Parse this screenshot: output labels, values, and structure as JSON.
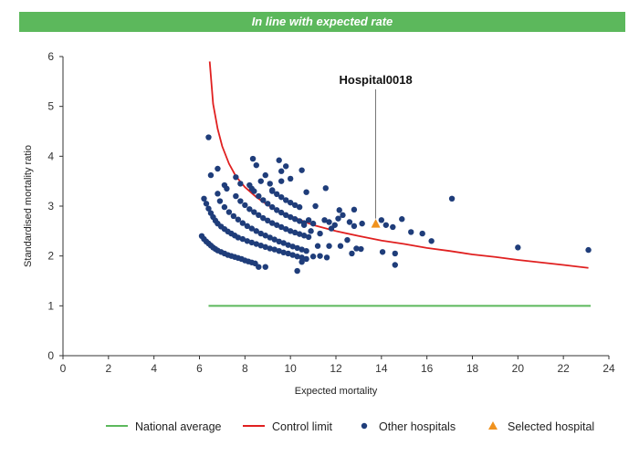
{
  "banner": {
    "text": "In line with expected rate",
    "color": "#5cb85c"
  },
  "chart_data": {
    "type": "scatter",
    "title": "",
    "xlabel": "Expected mortality",
    "ylabel": "Standardised mortality ratio",
    "xlim": [
      0,
      24
    ],
    "ylim": [
      0,
      6
    ],
    "x_ticks": [
      "0",
      "2",
      "4",
      "6",
      "8",
      "10",
      "12",
      "14",
      "16",
      "18",
      "20",
      "22",
      "24"
    ],
    "y_ticks": [
      "0",
      "1",
      "2",
      "3",
      "4",
      "5",
      "6"
    ],
    "grid": false,
    "legend_position": "bottom",
    "colors": {
      "national_average": "#5cb85c",
      "control_limit": "#e02020",
      "other_hospitals": "#1f3d7a",
      "selected_hospital": "#f0921e"
    },
    "national_average": {
      "name": "National average",
      "value": 1.0,
      "x_range": [
        6.4,
        23.2
      ]
    },
    "control_limit": {
      "name": "Control limit",
      "points": [
        [
          6.45,
          5.9
        ],
        [
          6.6,
          5.05
        ],
        [
          6.8,
          4.55
        ],
        [
          7.0,
          4.2
        ],
        [
          7.3,
          3.85
        ],
        [
          7.6,
          3.6
        ],
        [
          8.0,
          3.38
        ],
        [
          8.5,
          3.18
        ],
        [
          9.0,
          3.02
        ],
        [
          9.5,
          2.9
        ],
        [
          10.0,
          2.8
        ],
        [
          11.0,
          2.62
        ],
        [
          12.0,
          2.5
        ],
        [
          13.0,
          2.4
        ],
        [
          14.0,
          2.31
        ],
        [
          15.0,
          2.24
        ],
        [
          16.0,
          2.16
        ],
        [
          17.0,
          2.1
        ],
        [
          18.0,
          2.03
        ],
        [
          19.0,
          1.98
        ],
        [
          20.0,
          1.92
        ],
        [
          21.0,
          1.87
        ],
        [
          22.0,
          1.82
        ],
        [
          23.1,
          1.76
        ]
      ]
    },
    "selected_hospital": {
      "name": "Selected hospital",
      "label": "Hospital0018",
      "x": 13.75,
      "y": 2.64
    },
    "other_hospitals": {
      "name": "Other hospitals",
      "points": [
        [
          6.1,
          2.4
        ],
        [
          6.2,
          2.34
        ],
        [
          6.3,
          2.29
        ],
        [
          6.4,
          2.25
        ],
        [
          6.5,
          2.21
        ],
        [
          6.6,
          2.17
        ],
        [
          6.7,
          2.14
        ],
        [
          6.8,
          2.11
        ],
        [
          6.95,
          2.08
        ],
        [
          7.1,
          2.05
        ],
        [
          7.25,
          2.02
        ],
        [
          7.4,
          2.0
        ],
        [
          7.55,
          1.98
        ],
        [
          7.7,
          1.96
        ],
        [
          7.85,
          1.94
        ],
        [
          8.0,
          1.91
        ],
        [
          8.15,
          1.89
        ],
        [
          8.3,
          1.87
        ],
        [
          8.45,
          1.85
        ],
        [
          8.6,
          1.78
        ],
        [
          8.9,
          1.78
        ],
        [
          6.2,
          3.15
        ],
        [
          6.3,
          3.05
        ],
        [
          6.4,
          2.95
        ],
        [
          6.5,
          2.86
        ],
        [
          6.6,
          2.78
        ],
        [
          6.7,
          2.71
        ],
        [
          6.8,
          2.65
        ],
        [
          6.95,
          2.59
        ],
        [
          7.1,
          2.54
        ],
        [
          7.25,
          2.49
        ],
        [
          7.4,
          2.45
        ],
        [
          7.55,
          2.41
        ],
        [
          7.7,
          2.37
        ],
        [
          7.9,
          2.34
        ],
        [
          8.1,
          2.3
        ],
        [
          8.3,
          2.27
        ],
        [
          8.5,
          2.24
        ],
        [
          8.7,
          2.21
        ],
        [
          8.9,
          2.18
        ],
        [
          9.1,
          2.15
        ],
        [
          9.3,
          2.13
        ],
        [
          9.5,
          2.1
        ],
        [
          9.7,
          2.07
        ],
        [
          9.9,
          2.05
        ],
        [
          10.1,
          2.02
        ],
        [
          10.3,
          1.99
        ],
        [
          10.5,
          1.97
        ],
        [
          10.7,
          1.94
        ],
        [
          6.9,
          3.1
        ],
        [
          7.1,
          2.98
        ],
        [
          7.3,
          2.88
        ],
        [
          7.5,
          2.8
        ],
        [
          7.7,
          2.73
        ],
        [
          7.9,
          2.66
        ],
        [
          8.1,
          2.6
        ],
        [
          8.3,
          2.55
        ],
        [
          8.5,
          2.5
        ],
        [
          8.7,
          2.45
        ],
        [
          8.9,
          2.41
        ],
        [
          9.1,
          2.37
        ],
        [
          9.3,
          2.33
        ],
        [
          9.5,
          2.29
        ],
        [
          9.7,
          2.26
        ],
        [
          9.9,
          2.22
        ],
        [
          10.1,
          2.19
        ],
        [
          10.3,
          2.16
        ],
        [
          10.5,
          2.13
        ],
        [
          10.7,
          2.1
        ],
        [
          7.6,
          3.2
        ],
        [
          7.8,
          3.1
        ],
        [
          8.0,
          3.02
        ],
        [
          8.2,
          2.94
        ],
        [
          8.4,
          2.88
        ],
        [
          8.6,
          2.82
        ],
        [
          8.8,
          2.76
        ],
        [
          9.0,
          2.71
        ],
        [
          9.2,
          2.66
        ],
        [
          9.4,
          2.62
        ],
        [
          9.6,
          2.58
        ],
        [
          9.8,
          2.54
        ],
        [
          10.0,
          2.5
        ],
        [
          10.2,
          2.47
        ],
        [
          10.4,
          2.44
        ],
        [
          10.6,
          2.41
        ],
        [
          10.8,
          2.38
        ],
        [
          8.4,
          3.3
        ],
        [
          8.6,
          3.2
        ],
        [
          8.8,
          3.12
        ],
        [
          9.0,
          3.05
        ],
        [
          9.2,
          2.98
        ],
        [
          9.4,
          2.92
        ],
        [
          9.6,
          2.87
        ],
        [
          9.8,
          2.82
        ],
        [
          10.0,
          2.78
        ],
        [
          10.2,
          2.74
        ],
        [
          10.4,
          2.7
        ],
        [
          10.6,
          2.66
        ],
        [
          9.2,
          3.3
        ],
        [
          9.4,
          3.24
        ],
        [
          9.6,
          3.18
        ],
        [
          9.8,
          3.12
        ],
        [
          10.0,
          3.07
        ],
        [
          10.2,
          3.02
        ],
        [
          10.4,
          2.98
        ],
        [
          6.4,
          4.38
        ],
        [
          6.5,
          3.62
        ],
        [
          6.8,
          3.75
        ],
        [
          6.8,
          3.25
        ],
        [
          7.1,
          3.42
        ],
        [
          7.2,
          3.35
        ],
        [
          7.6,
          3.58
        ],
        [
          7.8,
          3.45
        ],
        [
          8.2,
          3.42
        ],
        [
          8.3,
          3.35
        ],
        [
          8.35,
          3.95
        ],
        [
          8.5,
          3.82
        ],
        [
          8.7,
          3.5
        ],
        [
          8.9,
          3.62
        ],
        [
          9.1,
          3.45
        ],
        [
          9.2,
          3.32
        ],
        [
          9.5,
          3.92
        ],
        [
          9.6,
          3.7
        ],
        [
          9.8,
          3.8
        ],
        [
          9.6,
          3.5
        ],
        [
          10.0,
          3.55
        ],
        [
          10.5,
          3.72
        ],
        [
          10.7,
          3.28
        ],
        [
          11.0,
          2.65
        ],
        [
          11.1,
          3.0
        ],
        [
          11.3,
          2.45
        ],
        [
          11.5,
          2.72
        ],
        [
          11.55,
          3.36
        ],
        [
          11.7,
          2.68
        ],
        [
          11.8,
          2.55
        ],
        [
          11.95,
          2.62
        ],
        [
          12.1,
          2.75
        ],
        [
          12.15,
          2.92
        ],
        [
          12.3,
          2.82
        ],
        [
          12.5,
          2.32
        ],
        [
          12.6,
          2.68
        ],
        [
          12.7,
          2.05
        ],
        [
          12.8,
          2.93
        ],
        [
          12.8,
          2.6
        ],
        [
          12.9,
          2.15
        ],
        [
          13.15,
          2.65
        ],
        [
          14.0,
          2.72
        ],
        [
          14.2,
          2.62
        ],
        [
          14.5,
          2.58
        ],
        [
          14.9,
          2.74
        ],
        [
          14.05,
          2.08
        ],
        [
          14.6,
          2.05
        ],
        [
          14.6,
          1.82
        ],
        [
          15.3,
          2.48
        ],
        [
          15.8,
          2.45
        ],
        [
          16.2,
          2.3
        ],
        [
          17.1,
          3.15
        ],
        [
          20.0,
          2.17
        ],
        [
          23.1,
          2.12
        ],
        [
          10.3,
          1.7
        ],
        [
          10.5,
          1.88
        ],
        [
          11.0,
          1.99
        ],
        [
          11.3,
          2.0
        ],
        [
          11.6,
          1.97
        ],
        [
          11.2,
          2.2
        ],
        [
          11.7,
          2.2
        ],
        [
          12.2,
          2.2
        ],
        [
          13.1,
          2.14
        ],
        [
          10.9,
          2.5
        ],
        [
          10.6,
          2.62
        ],
        [
          10.8,
          2.72
        ]
      ]
    }
  }
}
